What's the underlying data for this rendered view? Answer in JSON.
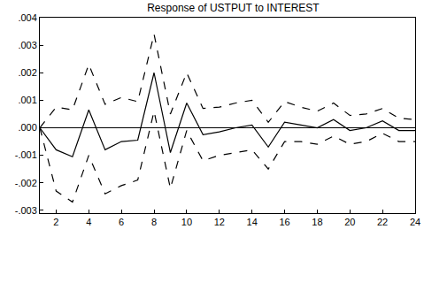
{
  "chart_data": {
    "type": "line",
    "title": "Response of USTPUT to INTEREST",
    "x": [
      1,
      2,
      3,
      4,
      5,
      6,
      7,
      8,
      9,
      10,
      11,
      12,
      13,
      14,
      15,
      16,
      17,
      18,
      19,
      20,
      21,
      22,
      23,
      24
    ],
    "series": [
      {
        "color": "#000000",
        "line_style": "solid",
        "values": [
          0,
          -0.0008,
          -0.00105,
          0.00065,
          -0.0008,
          -0.0005,
          -0.00045,
          0.002,
          -0.0009,
          0.0009,
          -0.00025,
          -0.00015,
          0.0,
          0.0001,
          -0.0007,
          0.0002,
          0.0001,
          0.0,
          0.0003,
          -0.0001,
          0.0,
          0.00025,
          -0.0001,
          -0.0001
        ]
      },
      {
        "color": "#000000",
        "line_style": "dash",
        "values": [
          0,
          0.00075,
          0.00065,
          0.0023,
          0.00085,
          0.0011,
          0.00095,
          0.0034,
          0.0005,
          0.002,
          0.0007,
          0.00075,
          0.0009,
          0.001,
          0.0002,
          0.00095,
          0.00075,
          0.0006,
          0.0009,
          0.00045,
          0.0005,
          0.0007,
          0.00035,
          0.0003
        ]
      },
      {
        "color": "#000000",
        "line_style": "dash",
        "values": [
          0,
          -0.0023,
          -0.0027,
          -0.001,
          -0.0024,
          -0.0021,
          -0.0019,
          0.0006,
          -0.0022,
          -0.0001,
          -0.0012,
          -0.001,
          -0.0009,
          -0.0008,
          -0.0015,
          -0.0005,
          -0.0005,
          -0.0006,
          -0.0003,
          -0.0006,
          -0.0005,
          -0.0002,
          -0.0005,
          -0.0005
        ]
      }
    ],
    "xlim": [
      1,
      24
    ],
    "xticks": [
      2,
      4,
      6,
      8,
      10,
      12,
      14,
      16,
      18,
      20,
      22,
      24
    ],
    "ylim": [
      -0.0031,
      0.004
    ],
    "yticks": [
      {
        "value": 0.004,
        "label": ".004"
      },
      {
        "value": 0.003,
        "label": ".003"
      },
      {
        "value": 0.002,
        "label": ".002"
      },
      {
        "value": 0.001,
        "label": ".001"
      },
      {
        "value": 0,
        "label": ".000"
      },
      {
        "value": -0.001,
        "label": "-.001"
      },
      {
        "value": -0.002,
        "label": "-.002"
      },
      {
        "value": -0.003,
        "label": "-.003"
      }
    ],
    "grid": false
  }
}
